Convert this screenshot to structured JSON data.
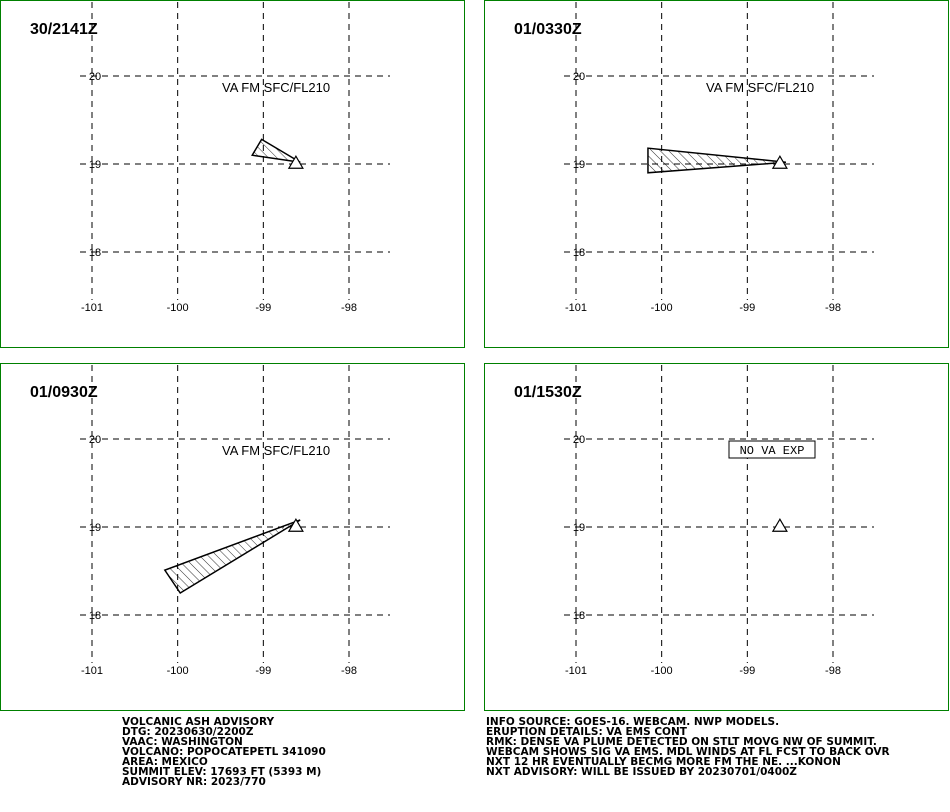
{
  "x_ticks": [
    -101,
    -100,
    -99,
    -98
  ],
  "y_ticks": [
    20,
    19,
    18
  ],
  "volcano": [
    -98.62,
    19.02
  ],
  "panels": [
    {
      "time": "30/2141Z",
      "label": "VA FM SFC/FL210",
      "polygon": [
        [
          -99.13,
          19.1
        ],
        [
          -99.02,
          19.28
        ],
        [
          -98.57,
          19.02
        ]
      ]
    },
    {
      "time": "01/0330Z",
      "label": "VA FM SFC/FL210",
      "polygon": [
        [
          -100.16,
          19.18
        ],
        [
          -100.16,
          18.9
        ],
        [
          -98.55,
          19.02
        ]
      ]
    },
    {
      "time": "01/0930Z",
      "label": "VA FM SFC/FL210",
      "polygon": [
        [
          -100.15,
          18.51
        ],
        [
          -99.97,
          18.25
        ],
        [
          -98.57,
          19.08
        ]
      ]
    },
    {
      "time": "01/1530Z",
      "label": "NO VA EXP",
      "polygon": []
    }
  ],
  "advisory_left": [
    "VOLCANIC ASH ADVISORY",
    "DTG: 20230630/2200Z",
    "VAAC: WASHINGTON",
    "VOLCANO: POPOCATEPETL 341090",
    "AREA: MEXICO",
    "SUMMIT ELEV: 17693 FT (5393 M)",
    "ADVISORY NR: 2023/770"
  ],
  "advisory_right": [
    "INFO SOURCE: GOES-16. WEBCAM. NWP MODELS.",
    "ERUPTION DETAILS: VA EMS CONT",
    "RMK: DENSE VA PLUME DETECTED ON STLT MOVG NW OF SUMMIT.",
    "WEBCAM SHOWS SIG VA EMS. MDL WINDS AT FL FCST TO BACK OVR",
    "NXT 12 HR EVENTUALLY BECMG MORE FM THE NE. ...KONON",
    "NXT ADVISORY: WILL BE ISSUED BY 20230701/0400Z"
  ]
}
